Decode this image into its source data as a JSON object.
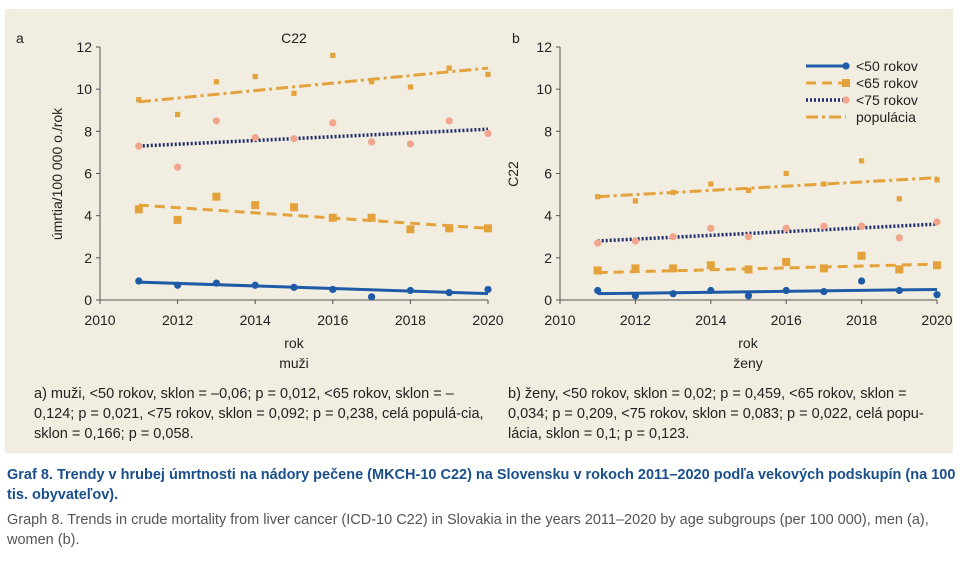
{
  "colors": {
    "under50": "#1f5aa6",
    "under65": "#e3a23b",
    "under75": "#f0a58c",
    "under75_line": "#1c2d6e",
    "population": "#e3a23b",
    "panel_background": "#f1ede0",
    "title_blue": "#1a4f8c"
  },
  "chart_data": [
    {
      "panel_label": "a",
      "type": "scatter",
      "title": "C22",
      "ylabel": "úmrtia/100 000 o./rok",
      "xlabel": "rok",
      "subxlabel": "muži",
      "xlim": [
        2010,
        2020
      ],
      "ylim": [
        0,
        12
      ],
      "xticks": [
        2010,
        2012,
        2014,
        2016,
        2018,
        2020
      ],
      "yticks": [
        0,
        2,
        4,
        6,
        8,
        10,
        12
      ],
      "x": [
        2011,
        2012,
        2013,
        2014,
        2015,
        2016,
        2017,
        2018,
        2019,
        2020
      ],
      "series": [
        {
          "name": "<50 rokov",
          "marker": "circle",
          "values": [
            0.9,
            0.7,
            0.8,
            0.7,
            0.6,
            0.5,
            0.15,
            0.45,
            0.35,
            0.5
          ],
          "trend": [
            0.85,
            0.3
          ]
        },
        {
          "name": "<65 rokov",
          "marker": "square",
          "values": [
            4.3,
            3.8,
            4.9,
            4.5,
            4.4,
            3.9,
            3.9,
            3.35,
            3.4,
            3.4
          ],
          "trend": [
            4.5,
            3.4
          ]
        },
        {
          "name": "<75 rokov",
          "marker": "circle-light",
          "values": [
            7.3,
            6.3,
            8.5,
            7.7,
            7.65,
            8.4,
            7.5,
            7.4,
            8.5,
            7.9
          ],
          "trend": [
            7.3,
            8.1
          ]
        },
        {
          "name": "populácia",
          "marker": "square-small",
          "values": [
            9.5,
            8.8,
            10.35,
            10.6,
            9.8,
            11.6,
            10.35,
            10.1,
            11.0,
            10.7
          ],
          "trend": [
            9.4,
            11.0
          ]
        }
      ],
      "caption": "a) muži, <50 rokov, sklon = –0,06; p = 0,012, <65 rokov, sklon = –0,124; p = 0,021, <75 rokov, sklon = 0,092; p = 0,238, celá populá-cia, sklon = 0,166; p = 0,058."
    },
    {
      "panel_label": "b",
      "type": "scatter",
      "title": "",
      "ylabel": "C22",
      "xlabel": "rok",
      "subxlabel": "ženy",
      "xlim": [
        2010,
        2020
      ],
      "ylim": [
        0,
        12
      ],
      "xticks": [
        2010,
        2012,
        2014,
        2016,
        2018,
        2020
      ],
      "yticks": [
        0,
        2,
        4,
        6,
        8,
        10,
        12
      ],
      "x": [
        2011,
        2012,
        2013,
        2014,
        2015,
        2016,
        2017,
        2018,
        2019,
        2020
      ],
      "legend_position": "top-right",
      "series": [
        {
          "name": "<50 rokov",
          "marker": "circle",
          "values": [
            0.45,
            0.2,
            0.3,
            0.45,
            0.2,
            0.45,
            0.4,
            0.9,
            0.45,
            0.25
          ],
          "trend": [
            0.3,
            0.5
          ]
        },
        {
          "name": "<65 rokov",
          "marker": "square",
          "values": [
            1.4,
            1.5,
            1.5,
            1.65,
            1.45,
            1.8,
            1.5,
            2.1,
            1.45,
            1.65
          ],
          "trend": [
            1.3,
            1.7
          ]
        },
        {
          "name": "<75 rokov",
          "marker": "circle-light",
          "values": [
            2.7,
            2.8,
            3.0,
            3.4,
            3.0,
            3.4,
            3.5,
            3.5,
            2.95,
            3.7
          ],
          "trend": [
            2.8,
            3.6
          ]
        },
        {
          "name": "populácia",
          "marker": "square-small",
          "values": [
            4.9,
            4.7,
            5.1,
            5.5,
            5.2,
            6.0,
            5.5,
            6.6,
            4.8,
            5.7
          ],
          "trend": [
            4.9,
            5.8
          ]
        }
      ],
      "caption": "b) ženy, <50 rokov, sklon = 0,02; p = 0,459, <65 rokov, sklon = 0,034; p = 0,209, <75 rokov, sklon = 0,083; p = 0,022, celá popu-lácia, sklon = 0,1; p = 0,123."
    }
  ],
  "figure": {
    "title_sk": "Graf 8. Trendy v hrubej úmrtnosti na nádory pečene (MKCH-10 C22) na Slovensku v rokoch 2011–2020 podľa vekových podskupín (na 100 tis. obyvateľov).",
    "title_en": "Graph 8. Trends in crude mortality from liver cancer (ICD-10 C22) in Slovakia in the years 2011–2020 by age subgroups (per 100 000), men (a), women (b)."
  }
}
